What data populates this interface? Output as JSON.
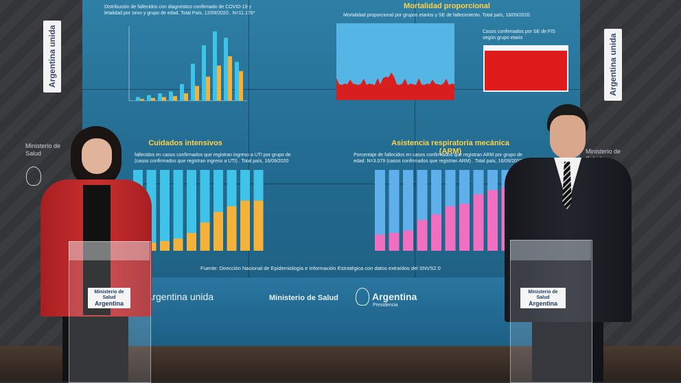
{
  "wall": {
    "left_logo": "Argentina unida",
    "right_logo": "Argentina unida",
    "left_ministry": "Ministerio de Salud",
    "right_ministry": "Ministerio de Salud"
  },
  "screen": {
    "top_left": {
      "subtitle_line1": "Distribución de fallecidos con diagnóstico confirmado de COVID-19 y",
      "subtitle_line2": "letalidad por sexo y grupo de edad. Total País, 12/09/2020 . N=11.176*"
    },
    "top_right": {
      "title": "Mortalidad proporcional",
      "subtitle": "Mortalidad proporcional por grupos etarios y SE de fallecimiento. Total país, 16/09/2020.",
      "inset_caption_line1": "Casos confirmados por SE de FIS",
      "inset_caption_line2": "según grupo etario"
    },
    "bottom_left": {
      "title": "Cuidados intensivos",
      "subtitle_line1": "fallecidos en casos confirmados que registran ingreso a UTI por grupo de",
      "subtitle_line2": "(casos confirmados que registran ingreso a UTI) . Total país, 16/09/2020"
    },
    "bottom_right": {
      "title": "Asistencia respiratoria mecánica (ARM)",
      "subtitle_line1": "Porcentaje de fallecidos en casos confirmados que registran ARM por grupo de",
      "subtitle_line2": "edad. N=3.079 (casos confirmados que registran ARM) . Total país, 16/09/2020"
    },
    "source": "Fuente: Dirección Nacional de Epidemiología e Información Estratégica con datos extraídos del SNVS2.0"
  },
  "banner": {
    "logo1": "Argentina unida",
    "logo2": "Ministerio de Salud",
    "logo3": "Argentina",
    "logo3_sub": "Presidencia"
  },
  "podium_left": {
    "line1": "Ministerio de Salud",
    "line2": "Argentina"
  },
  "podium_right": {
    "line1": "Ministerio de Salud",
    "line2": "Argentina"
  },
  "colors": {
    "screen_blue": "#2e7fa6",
    "title_yellow": "#ffd24a",
    "bar_cyan": "#3fc3e8",
    "bar_orange": "#f5b23a",
    "bar_pink": "#f06fc0",
    "bar_red": "#d81e1e",
    "jacket_red": "#c0282a"
  }
}
